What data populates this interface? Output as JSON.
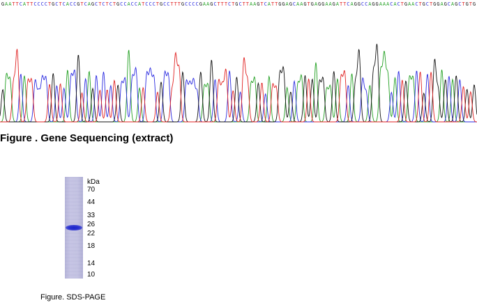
{
  "sequencing": {
    "bases": "GAATTCATTCCCCTGCTCACCGTCAGCTCTCTGCCACCATCCCTGCCTTTGCCCCGAAGCTTTCTGCTTAAGTCATTGGAGCAAGTGAGGAAGATTCAGGCCAGGAAACACTGAACTGCTGGAGCAGCTGTG",
    "colors": {
      "A": "#22a022",
      "C": "#2a2ae0",
      "G": "#111111",
      "T": "#e02020"
    },
    "caption": "Figure . Gene Sequencing (extract)"
  },
  "sds_page": {
    "unit_label": "kDa",
    "markers": [
      "70",
      "44",
      "33",
      "26",
      "22",
      "18",
      "14",
      "10"
    ],
    "caption": "Figure. SDS-PAGE",
    "band_color": "#1b25c8",
    "lane_color": "#c2c1e2"
  }
}
